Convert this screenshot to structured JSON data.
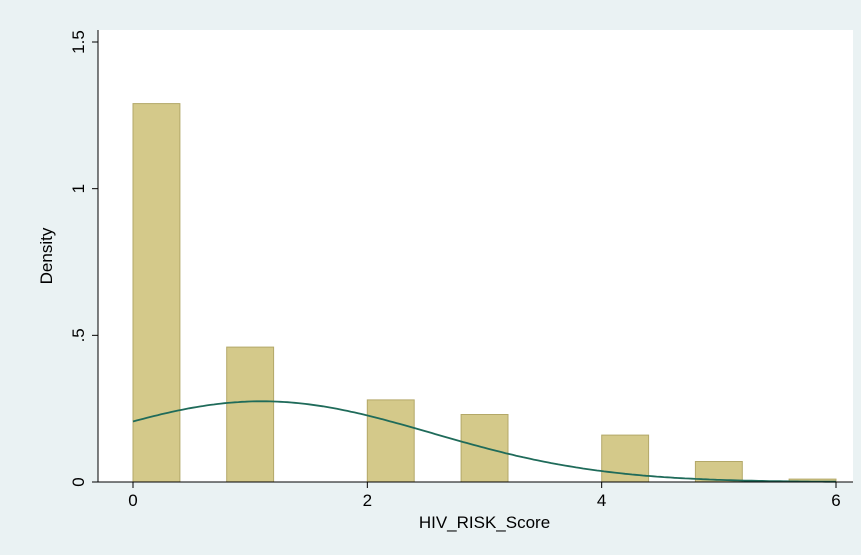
{
  "chart_data": {
    "type": "bar",
    "title": "",
    "xlabel": "HIV_RISK_Score",
    "ylabel": "Density",
    "xlim": [
      -0.3,
      6.1
    ],
    "ylim": [
      0,
      1.5
    ],
    "x_ticks": [
      0,
      2,
      4,
      6
    ],
    "x_tick_labels": [
      "0",
      "2",
      "4",
      "6"
    ],
    "y_ticks": [
      0,
      0.5,
      1,
      1.5
    ],
    "y_tick_labels": [
      "0",
      ".5",
      "1",
      "1.5"
    ],
    "grid": false,
    "legend": "none",
    "bar_color": "#d4c98a",
    "bar_edge_color": "#b3a868",
    "curve_color": "#1f6b5a",
    "background_outer": "#eaf2f3",
    "background_plot": "#ffffff",
    "bars": [
      {
        "x_start": 0.0,
        "x_end": 0.4,
        "density": 1.29
      },
      {
        "x_start": 0.8,
        "x_end": 1.2,
        "density": 0.46
      },
      {
        "x_start": 2.0,
        "x_end": 2.4,
        "density": 0.28
      },
      {
        "x_start": 2.8,
        "x_end": 3.2,
        "density": 0.23
      },
      {
        "x_start": 4.0,
        "x_end": 4.4,
        "density": 0.16
      },
      {
        "x_start": 4.8,
        "x_end": 5.2,
        "density": 0.07
      },
      {
        "x_start": 5.6,
        "x_end": 6.0,
        "density": 0.01
      }
    ],
    "normal_curve": {
      "mean": 1.1,
      "sd": 1.45,
      "x_range": [
        0,
        6
      ]
    }
  }
}
